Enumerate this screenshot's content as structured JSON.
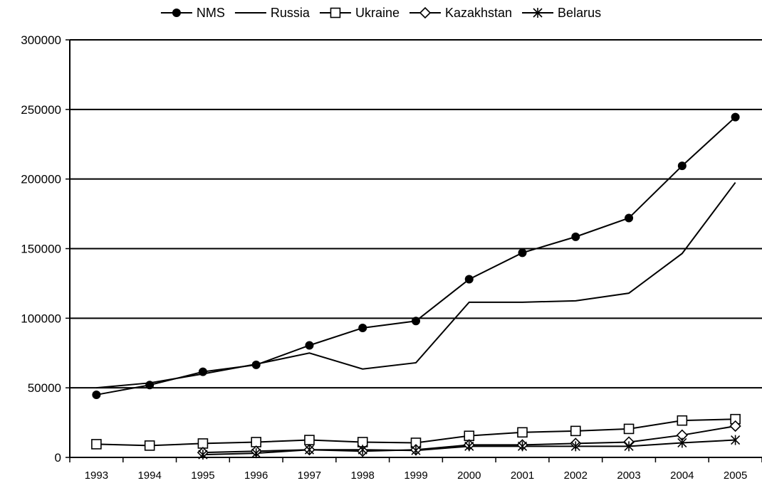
{
  "chart_data": {
    "type": "line",
    "title": "",
    "xlabel": "",
    "ylabel": "",
    "x": [
      "1993",
      "1994",
      "1995",
      "1996",
      "1997",
      "1998",
      "1999",
      "2000",
      "2001",
      "2002",
      "2003",
      "2004",
      "2005"
    ],
    "ylim": [
      0,
      300000
    ],
    "yticks": [
      "0",
      "50000",
      "100000",
      "150000",
      "200000",
      "250000",
      "300000"
    ],
    "grid": "horizontal",
    "legend_position": "top",
    "series": [
      {
        "name": "NMS",
        "marker": "filled-circle",
        "values": [
          45000,
          52000,
          61500,
          66500,
          80500,
          93000,
          98000,
          128000,
          147000,
          158500,
          172000,
          209500,
          244500
        ]
      },
      {
        "name": "Russia",
        "marker": "none",
        "values": [
          50000,
          53500,
          60000,
          67000,
          75000,
          63500,
          68000,
          111500,
          111500,
          112500,
          118000,
          146500,
          197500
        ]
      },
      {
        "name": "Ukraine",
        "marker": "open-square",
        "values": [
          9500,
          8500,
          10000,
          11000,
          12500,
          11000,
          10500,
          15500,
          18000,
          19000,
          20500,
          26500,
          27500
        ]
      },
      {
        "name": "Kazakhstan",
        "marker": "open-diamond",
        "values": [
          null,
          null,
          3500,
          4500,
          5500,
          4500,
          5500,
          9000,
          9000,
          10000,
          11000,
          16000,
          22500
        ]
      },
      {
        "name": "Belarus",
        "marker": "asterisk",
        "values": [
          null,
          null,
          2000,
          3000,
          5500,
          5500,
          5000,
          8000,
          8000,
          8000,
          8000,
          10500,
          12500
        ]
      }
    ]
  }
}
